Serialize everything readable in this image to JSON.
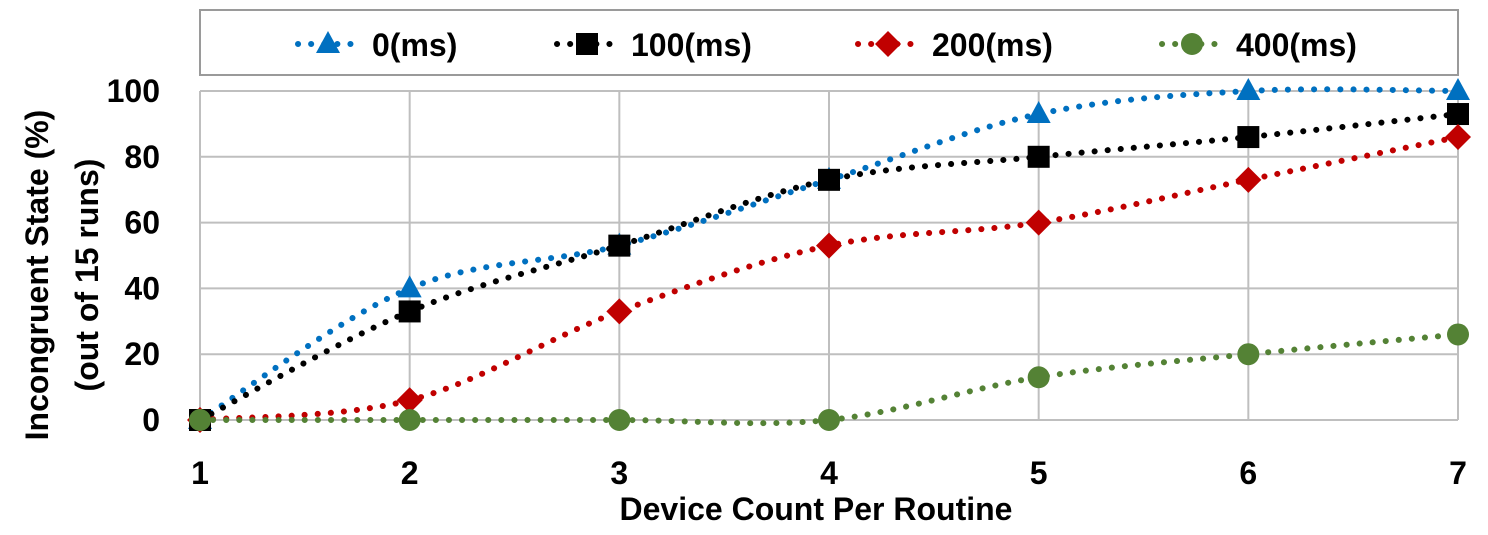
{
  "chart_data": {
    "type": "line",
    "title": "",
    "xlabel": "Device Count Per Routine",
    "ylabel_lines": [
      "Incongruent State (%)",
      "(out of 15 runs)"
    ],
    "x": [
      1,
      2,
      3,
      4,
      5,
      6,
      7
    ],
    "xlim": [
      1,
      7
    ],
    "ylim": [
      0,
      100
    ],
    "yticks": [
      0,
      20,
      40,
      60,
      80,
      100
    ],
    "grid": true,
    "legend_position": "top",
    "line_style": "dotted",
    "series": [
      {
        "name": "0(ms)",
        "marker": "triangle",
        "color": "#0070C0",
        "values": [
          0,
          40,
          53,
          73,
          93,
          100,
          100
        ]
      },
      {
        "name": "100(ms)",
        "marker": "square",
        "color": "#000000",
        "values": [
          0,
          33,
          53,
          73,
          80,
          86,
          93
        ]
      },
      {
        "name": "200(ms)",
        "marker": "diamond",
        "color": "#C00000",
        "values": [
          0,
          6,
          33,
          53,
          60,
          73,
          86
        ]
      },
      {
        "name": "400(ms)",
        "marker": "circle",
        "color": "#548235",
        "values": [
          0,
          0,
          0,
          0,
          13,
          20,
          26
        ]
      }
    ]
  }
}
